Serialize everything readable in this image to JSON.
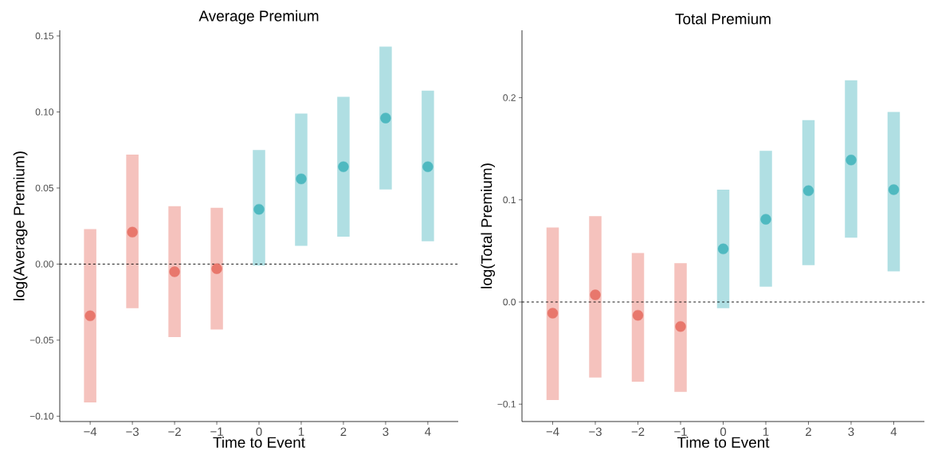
{
  "chart_data": [
    {
      "type": "scatter",
      "title": "Average Premium",
      "xlabel": "Time to Event",
      "ylabel": "log(Average Premium)",
      "marker": "circle",
      "xlim": [
        -4.72,
        4.72
      ],
      "xticks": [
        {
          "value": -4,
          "label": "−4"
        },
        {
          "value": -3,
          "label": "−3"
        },
        {
          "value": -2,
          "label": "−2"
        },
        {
          "value": -1,
          "label": "−1"
        },
        0,
        1,
        2,
        3,
        4
      ],
      "ylim": [
        -0.1035,
        0.1537
      ],
      "yticks": [
        {
          "value": -0.1,
          "label": "−0.10"
        },
        {
          "value": -0.05,
          "label": "−0.05"
        },
        {
          "value": 0,
          "label": "0.00"
        },
        {
          "value": 0.05,
          "label": "0.05"
        },
        {
          "value": 0.1,
          "label": "0.10"
        },
        {
          "value": 0.15,
          "label": "0.15"
        }
      ],
      "ref_lines": [
        {
          "axis": "y",
          "value": 0,
          "line_style": "dashed",
          "color": "#000000"
        }
      ],
      "series": [
        {
          "color": "#e8776c",
          "x": [
            -4,
            -3,
            -2,
            -1
          ],
          "values": [
            -0.034,
            0.021,
            -0.005,
            -0.003
          ],
          "errors": [
            [
              -0.091,
              0.023
            ],
            [
              -0.029,
              0.072
            ],
            [
              -0.048,
              0.038
            ],
            [
              -0.043,
              0.037
            ]
          ]
        },
        {
          "color": "#4fb9c0",
          "x": [
            0,
            1,
            2,
            3,
            4
          ],
          "values": [
            0.036,
            0.056,
            0.064,
            0.096,
            0.064
          ],
          "errors": [
            [
              -0.001,
              0.075
            ],
            [
              0.012,
              0.099
            ],
            [
              0.018,
              0.11
            ],
            [
              0.049,
              0.143
            ],
            [
              0.015,
              0.114
            ]
          ]
        }
      ]
    },
    {
      "type": "scatter",
      "title": "Total Premium",
      "xlabel": "Time to Event",
      "ylabel": "log(Total Premium)",
      "marker": "circle",
      "xlim": [
        -4.72,
        4.72
      ],
      "xticks": [
        {
          "value": -4,
          "label": "−4"
        },
        {
          "value": -3,
          "label": "−3"
        },
        {
          "value": -2,
          "label": "−2"
        },
        {
          "value": -1,
          "label": "−1"
        },
        0,
        1,
        2,
        3,
        4
      ],
      "ylim": [
        -0.117,
        0.266
      ],
      "yticks": [
        {
          "value": -0.1,
          "label": "−0.1"
        },
        {
          "value": 0,
          "label": "0.0"
        },
        {
          "value": 0.1,
          "label": "0.1"
        },
        {
          "value": 0.2,
          "label": "0.2"
        }
      ],
      "ref_lines": [
        {
          "axis": "y",
          "value": 0,
          "line_style": "dashed",
          "color": "#000000"
        }
      ],
      "series": [
        {
          "color": "#e8776c",
          "x": [
            -4,
            -3,
            -2,
            -1
          ],
          "values": [
            -0.011,
            0.007,
            -0.013,
            -0.024
          ],
          "errors": [
            [
              -0.096,
              0.073
            ],
            [
              -0.074,
              0.084
            ],
            [
              -0.078,
              0.048
            ],
            [
              -0.088,
              0.038
            ]
          ]
        },
        {
          "color": "#4fb9c0",
          "x": [
            0,
            1,
            2,
            3,
            4
          ],
          "values": [
            0.052,
            0.081,
            0.109,
            0.139,
            0.11
          ],
          "errors": [
            [
              -0.006,
              0.11
            ],
            [
              0.015,
              0.148
            ],
            [
              0.036,
              0.178
            ],
            [
              0.063,
              0.217
            ],
            [
              0.03,
              0.186
            ]
          ]
        }
      ]
    }
  ]
}
